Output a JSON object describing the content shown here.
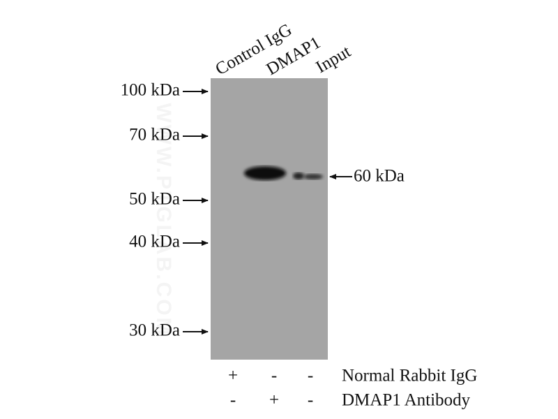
{
  "lanes": [
    "Control IgG",
    "DMAP1",
    "Input"
  ],
  "markers": [
    "100 kDa",
    "70 kDa",
    "50 kDa",
    "40 kDa",
    "30 kDa"
  ],
  "band_label": "60 kDa",
  "conditions": [
    {
      "name": "Normal Rabbit IgG",
      "signs": [
        "+",
        "-",
        "-"
      ]
    },
    {
      "name": "DMAP1 Antibody",
      "signs": [
        "-",
        "+",
        "-"
      ]
    }
  ],
  "watermark": "WWW.PTGLAB.COM"
}
